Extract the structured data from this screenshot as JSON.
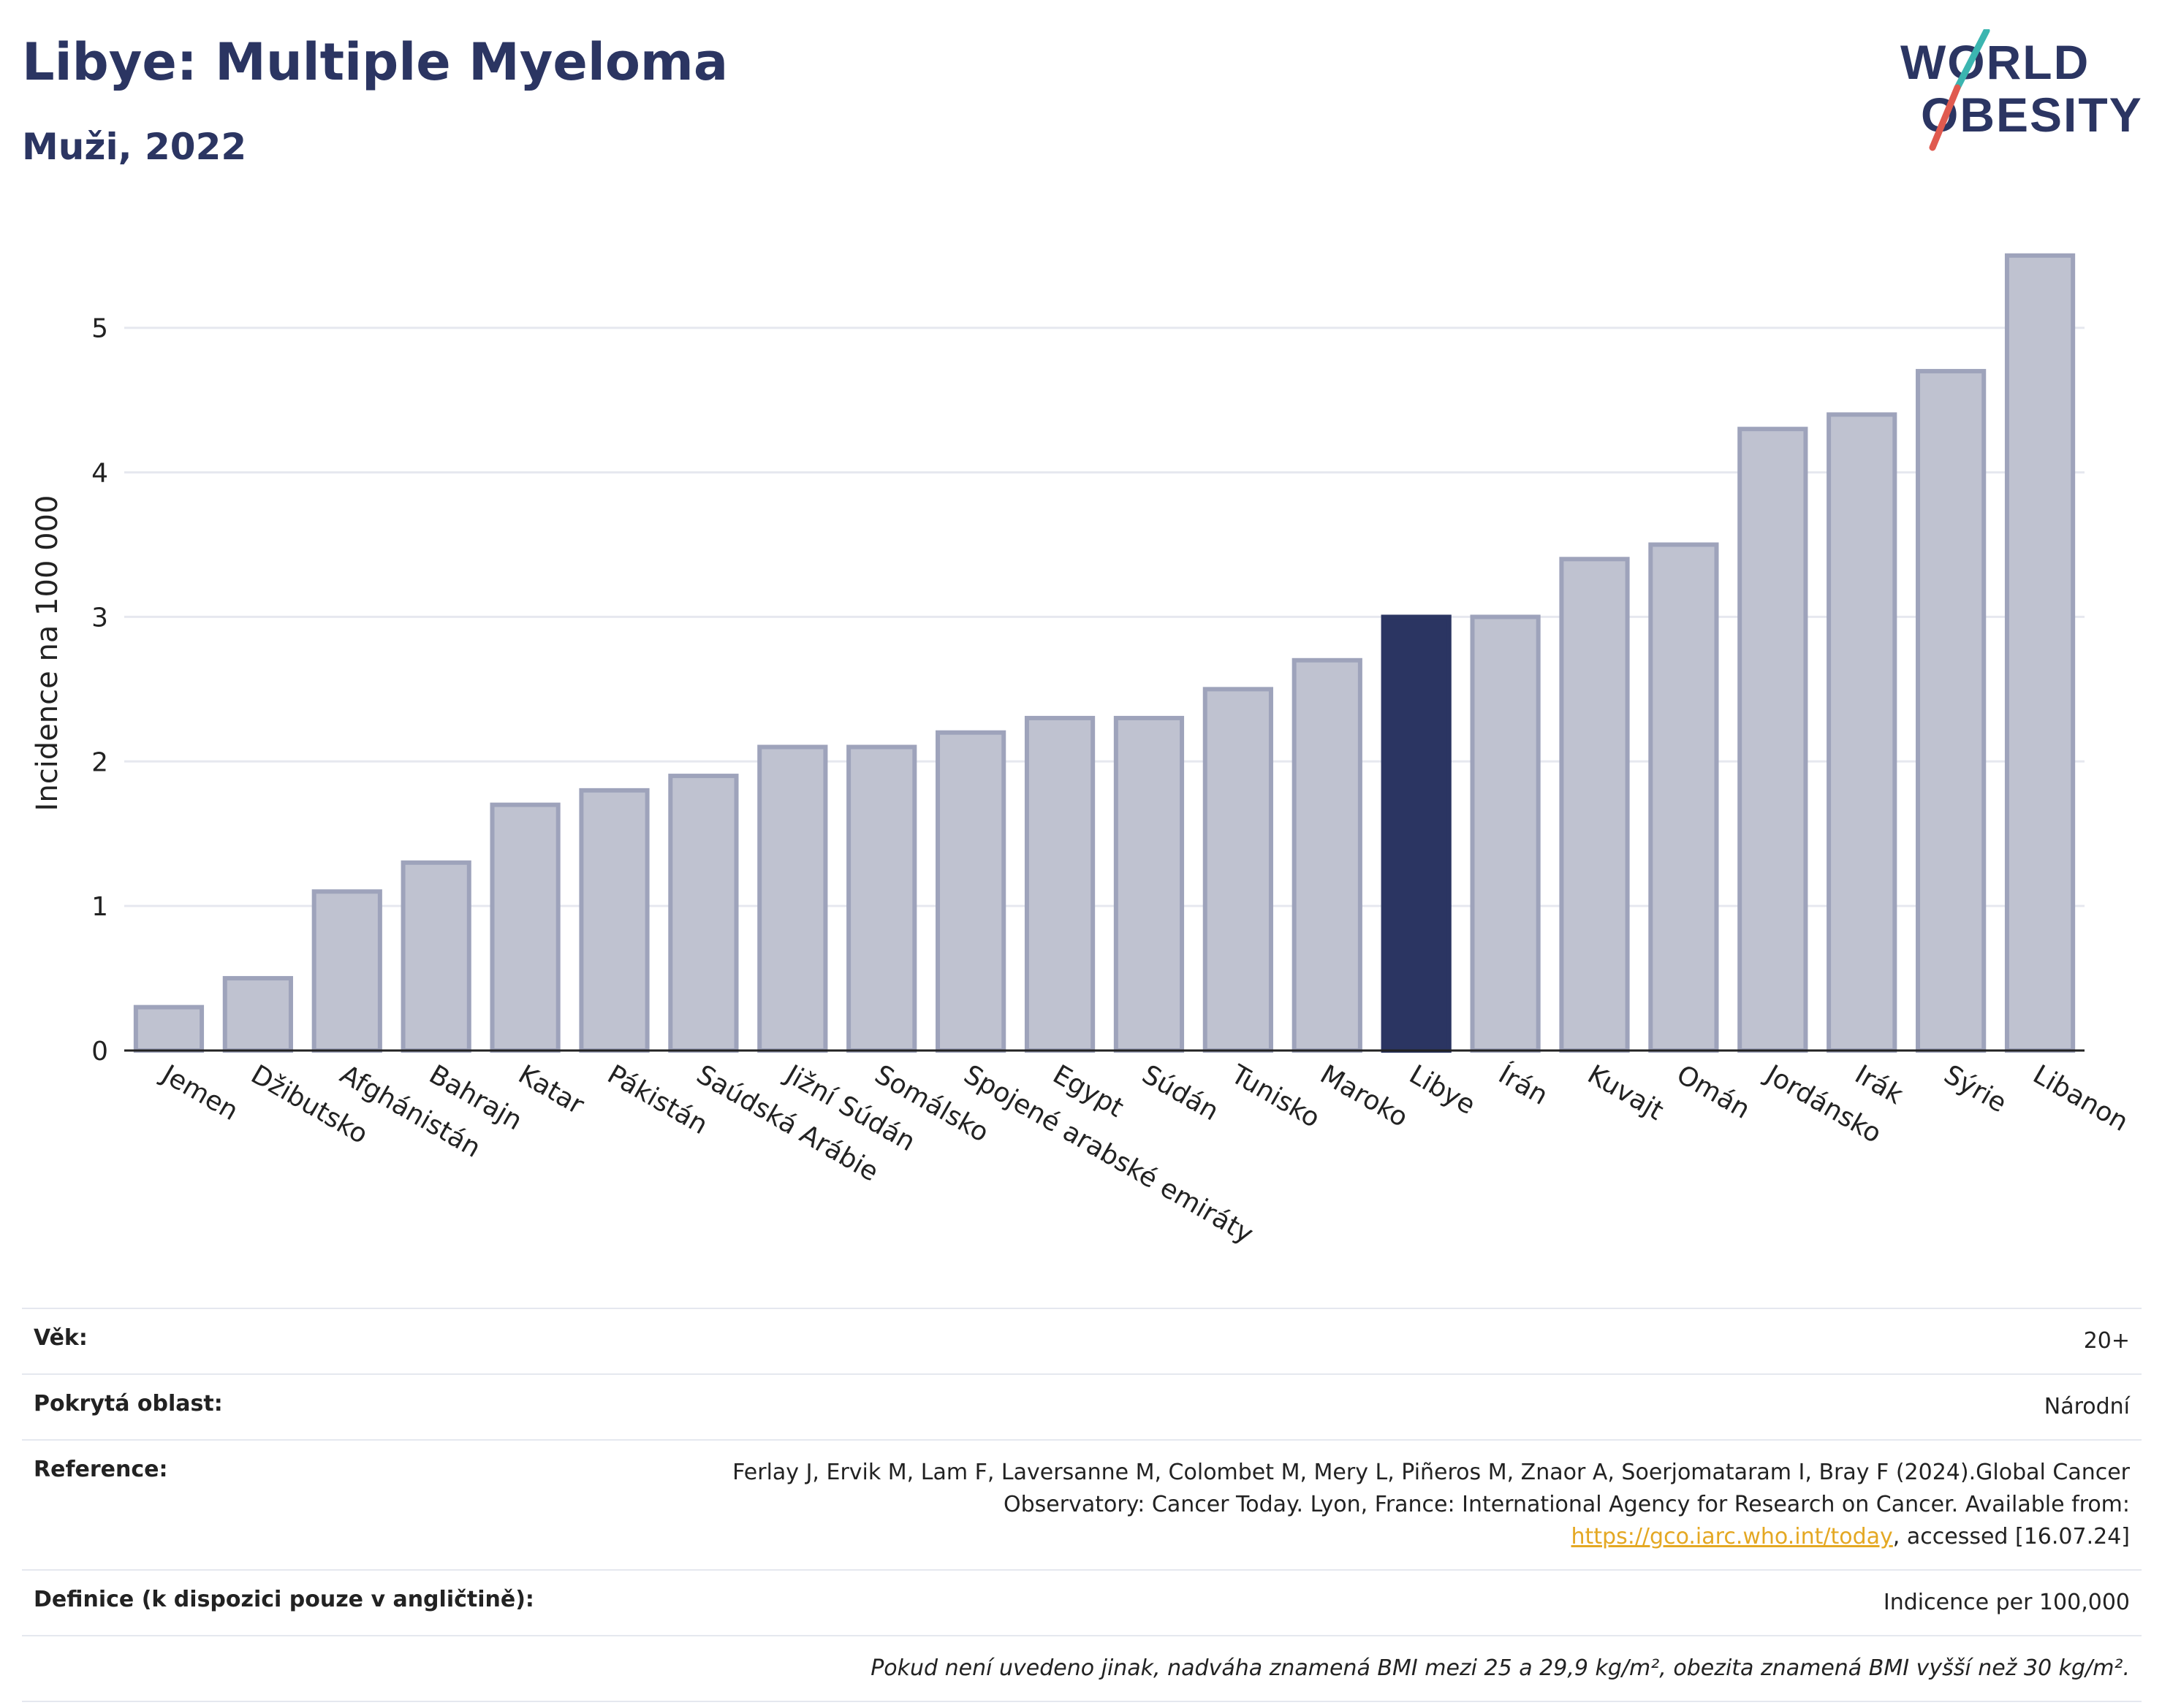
{
  "header": {
    "title": "Libye: Multiple Myeloma",
    "subtitle": "Muži, 2022"
  },
  "logo": {
    "line1": "WORLD",
    "line2": "OBESITY",
    "colors": {
      "text": "#2b3562",
      "slash_teal": "#3bb5b0",
      "slash_red": "#e05a4f"
    }
  },
  "chart_data": {
    "type": "bar",
    "title": "Libye: Multiple Myeloma",
    "subtitle": "Muži, 2022",
    "ylabel": "Incidence na 100 000",
    "xlabel": "",
    "ylim": [
      0,
      5.6
    ],
    "yticks": [
      0,
      1,
      2,
      3,
      4,
      5
    ],
    "grid": true,
    "highlight": "Libye",
    "colors": {
      "bar": "#bfc2d0",
      "bar_stroke": "#9ea3bb",
      "highlight": "#2b3562"
    },
    "categories": [
      "Jemen",
      "Džibutsko",
      "Afghánistán",
      "Bahrajn",
      "Katar",
      "Pákistán",
      "Saúdská Arábie",
      "Jižní Súdán",
      "Somálsko",
      "Spojené arabské emiráty",
      "Egypt",
      "Súdán",
      "Tunisko",
      "Maroko",
      "Libye",
      "Írán",
      "Kuvajt",
      "Omán",
      "Jordánsko",
      "Irák",
      "Sýrie",
      "Libanon"
    ],
    "values": [
      0.3,
      0.5,
      1.1,
      1.3,
      1.7,
      1.8,
      1.9,
      2.1,
      2.1,
      2.2,
      2.3,
      2.3,
      2.5,
      2.7,
      3.0,
      3.0,
      3.4,
      3.5,
      4.3,
      4.4,
      4.7,
      5.5
    ]
  },
  "meta": {
    "age_label": "Věk:",
    "age_value": "20+",
    "area_label": "Pokrytá oblast:",
    "area_value": "Národní",
    "ref_label": "Reference:",
    "ref_text_1": "Ferlay J, Ervik M, Lam F, Laversanne M, Colombet M, Mery L, Piñeros M, Znaor A, Soerjomataram I, Bray F (2024).Global Cancer Observatory: Cancer Today. Lyon, France: International Agency for Research on Cancer. Available from: ",
    "ref_link": "https://gco.iarc.who.int/today",
    "ref_text_2": ", accessed [16.07.24]",
    "def_label": "Definice (k dispozici pouze v angličtině):",
    "def_value": "Indicence per 100,000",
    "note": "Pokud není uvedeno jinak, nadváha znamená BMI mezi 25 a 29,9 kg/m², obezita znamená BMI vyšší než 30 kg/m²."
  }
}
